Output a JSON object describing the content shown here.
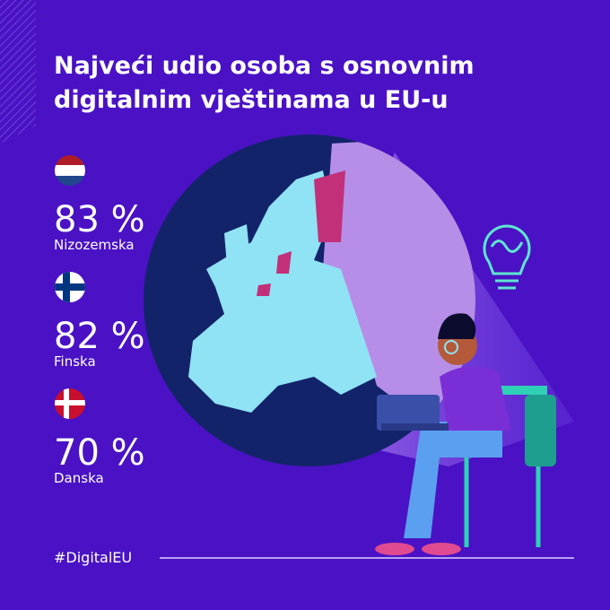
{
  "header": {
    "title_lines": [
      "Najveći udio osoba s osnovnim",
      "digitalnim vještinama u EU-u"
    ]
  },
  "stats": [
    {
      "value": "83 %",
      "country": "Nizozemska"
    },
    {
      "value": "82 %",
      "country": "Finska"
    },
    {
      "value": "70 %",
      "country": "Danska"
    }
  ],
  "footer": {
    "hashtag": "#DigitalEU"
  }
}
